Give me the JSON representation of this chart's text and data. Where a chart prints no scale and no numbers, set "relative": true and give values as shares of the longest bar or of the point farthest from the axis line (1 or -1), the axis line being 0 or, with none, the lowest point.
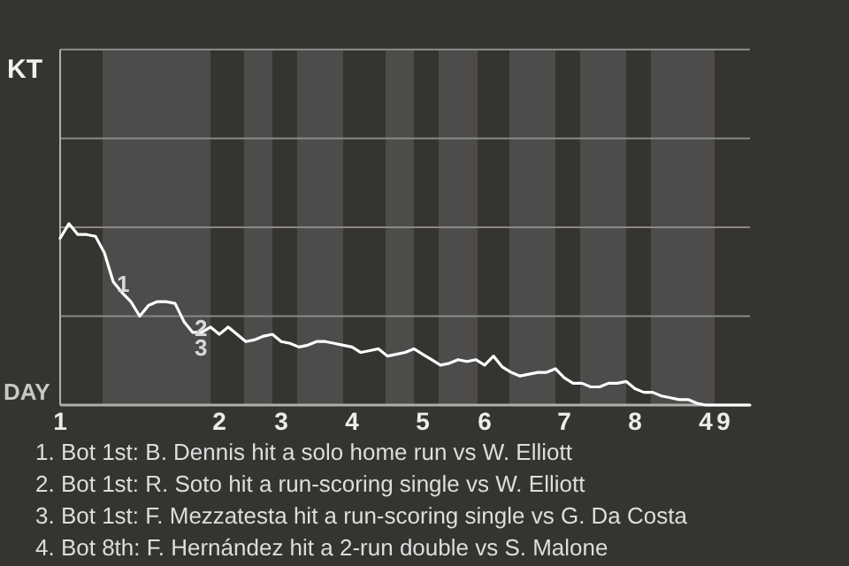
{
  "chart_data": {
    "type": "line",
    "relative": true,
    "categories": [
      "1",
      null,
      null,
      null,
      null,
      null,
      null,
      null,
      null,
      null,
      null,
      null,
      null,
      null,
      null,
      null,
      null,
      null,
      "2",
      null,
      null,
      null,
      null,
      null,
      null,
      "3",
      null,
      null,
      null,
      null,
      null,
      null,
      null,
      "4",
      null,
      null,
      null,
      null,
      null,
      null,
      null,
      "5",
      null,
      null,
      null,
      null,
      null,
      null,
      "6",
      null,
      null,
      null,
      null,
      null,
      null,
      null,
      null,
      "7",
      null,
      null,
      null,
      null,
      null,
      null,
      null,
      "8",
      null,
      null,
      null,
      null,
      null,
      null,
      null,
      "4",
      null,
      "9",
      null,
      null,
      null
    ],
    "marker": "none",
    "ref_lines": [
      {
        "axis": "y",
        "value": 0.49,
        "color": "#8a8988"
      },
      {
        "axis": "y",
        "value": 0.98,
        "color": "#8a8988"
      },
      {
        "axis": "y",
        "value": 1.47,
        "color": "#8a8988"
      },
      {
        "axis": "y",
        "value": 1.96,
        "color": "#8a8988"
      }
    ],
    "line_style": "solid",
    "series": [
      {
        "color": "#ffffff",
        "values": [
          0.92,
          1,
          0.94,
          0.94,
          0.93,
          0.84,
          0.68,
          0.62,
          0.57,
          0.49,
          0.55,
          0.57,
          0.57,
          0.56,
          0.46,
          0.4,
          0.4,
          0.43,
          0.39,
          0.43,
          0.39,
          0.35,
          0.36,
          0.38,
          0.39,
          0.35,
          0.34,
          0.32,
          0.33,
          0.35,
          0.35,
          0.34,
          0.33,
          0.32,
          0.29,
          0.3,
          0.31,
          0.27,
          0.28,
          0.29,
          0.31,
          0.28,
          0.25,
          0.22,
          0.23,
          0.25,
          0.24,
          0.25,
          0.22,
          0.27,
          0.21,
          0.18,
          0.16,
          0.17,
          0.18,
          0.18,
          0.2,
          0.15,
          0.12,
          0.12,
          0.1,
          0.1,
          0.12,
          0.12,
          0.13,
          0.09,
          0.07,
          0.07,
          0.05,
          0.04,
          0.03,
          0.03,
          0.01,
          0,
          0,
          0,
          0,
          0,
          0
        ]
      }
    ],
    "annotations": [
      "KT",
      "DAY",
      "1",
      "2",
      "3",
      "1. Bot 1st: B. Dennis hit a solo home run vs W. Elliott",
      "2. Bot 1st: R. Soto hit a run-scoring single vs W. Elliott",
      "3. Bot 1st: F. Mezzatesta hit a run-scoring single vs G. Da Costa",
      "4. Bot 8th: F. Hernández hit a 2-run double vs S. Malone"
    ]
  }
}
